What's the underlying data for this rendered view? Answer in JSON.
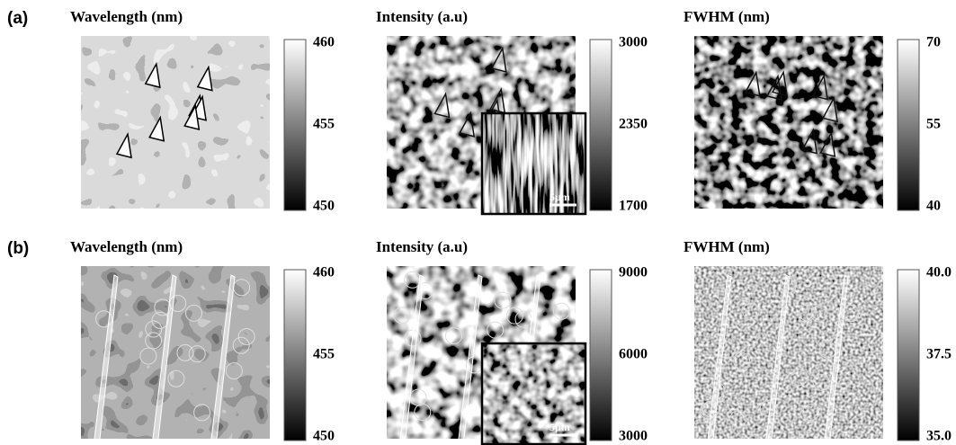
{
  "rows": [
    {
      "label": "(a)",
      "panels": [
        {
          "title": "Wavelength (nm)",
          "colorbar_ticks": [
            "460",
            "455",
            "450"
          ]
        },
        {
          "title": "Intensity (a.u)",
          "colorbar_ticks": [
            "3000",
            "2350",
            "1700"
          ],
          "inset_scale": "5μm"
        },
        {
          "title": "FWHM (nm)",
          "colorbar_ticks": [
            "70",
            "55",
            "40"
          ]
        }
      ]
    },
    {
      "label": "(b)",
      "panels": [
        {
          "title": "Wavelength (nm)",
          "colorbar_ticks": [
            "460",
            "455",
            "450"
          ]
        },
        {
          "title": "Intensity (a.u)",
          "colorbar_ticks": [
            "9000",
            "6000",
            "3000"
          ],
          "inset_scale": "5μm"
        },
        {
          "title": "FWHM (nm)",
          "colorbar_ticks": [
            "40.0",
            "37.5",
            "35.0"
          ]
        }
      ]
    }
  ]
}
